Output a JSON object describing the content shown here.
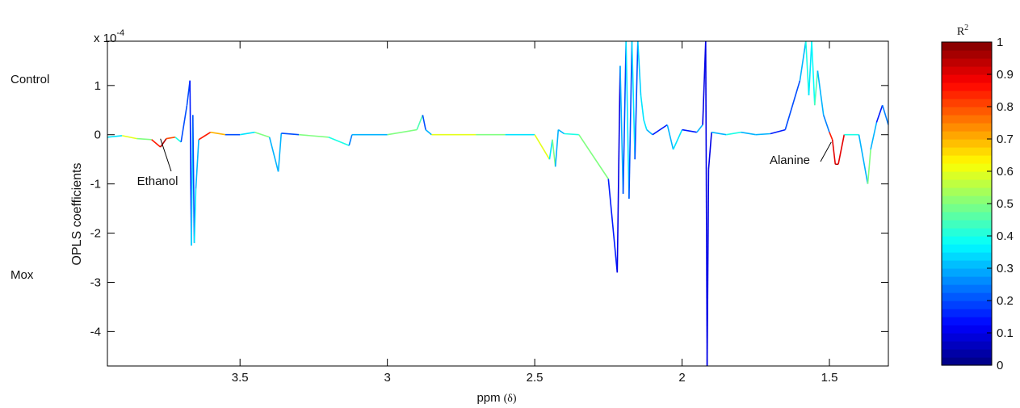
{
  "chart_data": {
    "type": "line",
    "xlabel": "ppm",
    "xlabel_symbol": "(δ)",
    "ylabel": "OPLS coefficients",
    "y_multiplier": "x 10",
    "y_multiplier_exp": "-4",
    "x_direction": "reversed",
    "xlim": [
      1.3,
      3.95
    ],
    "ylim": [
      -4.7,
      1.9
    ],
    "x_ticks": [
      "3.5",
      "3",
      "2.5",
      "2",
      "1.5"
    ],
    "x_tick_values": [
      3.5,
      3.0,
      2.5,
      2.0,
      1.5
    ],
    "y_ticks": [
      "1",
      "0",
      "-1",
      "-2",
      "-3",
      "-4"
    ],
    "y_tick_values": [
      1,
      0,
      -1,
      -2,
      -3,
      -4
    ],
    "grid": false,
    "group_labels": {
      "top": "Control",
      "bottom": "Mox"
    },
    "annotations": [
      {
        "text": "Ethanol",
        "x": 3.77,
        "y": -0.05
      },
      {
        "text": "Alanine",
        "x": 1.48,
        "y": -0.1
      }
    ],
    "colorbar": {
      "title": "R",
      "title_exp": "2",
      "range": [
        0,
        1
      ],
      "ticks": [
        "1",
        "0.9",
        "0.8",
        "0.7",
        "0.6",
        "0.5",
        "0.4",
        "0.3",
        "0.2",
        "0.1",
        "0"
      ],
      "tick_values": [
        1,
        0.9,
        0.8,
        0.7,
        0.6,
        0.5,
        0.4,
        0.3,
        0.2,
        0.1,
        0
      ],
      "colormap": "jet"
    },
    "series": [
      {
        "x": [
          3.95,
          3.9,
          3.85,
          3.8,
          3.77,
          3.75,
          3.72,
          3.7,
          3.68,
          3.67,
          3.665,
          3.66,
          3.655,
          3.65,
          3.64,
          3.6,
          3.55,
          3.5,
          3.45,
          3.4,
          3.37,
          3.36,
          3.3,
          3.2,
          3.13,
          3.12,
          3.0,
          2.9,
          2.88,
          2.87,
          2.85,
          2.7,
          2.6,
          2.5,
          2.45,
          2.44,
          2.43,
          2.42,
          2.4,
          2.35,
          2.25,
          2.22,
          2.21,
          2.2,
          2.19,
          2.18,
          2.17,
          2.16,
          2.15,
          2.14,
          2.13,
          2.12,
          2.1,
          2.05,
          2.03,
          2.0,
          1.95,
          1.93,
          1.92,
          1.915,
          1.91,
          1.9,
          1.85,
          1.8,
          1.75,
          1.7,
          1.65,
          1.6,
          1.58,
          1.57,
          1.56,
          1.55,
          1.54,
          1.52,
          1.5,
          1.49,
          1.48,
          1.47,
          1.45,
          1.4,
          1.37,
          1.36,
          1.34,
          1.32,
          1.3
        ],
        "y": [
          -0.05,
          -0.02,
          -0.08,
          -0.1,
          -0.25,
          -0.08,
          -0.05,
          -0.15,
          0.6,
          1.1,
          -2.25,
          0.4,
          -2.2,
          -1.1,
          -0.1,
          0.05,
          0.0,
          0.0,
          0.05,
          -0.05,
          -0.75,
          0.03,
          0.0,
          -0.05,
          -0.22,
          0.0,
          0.0,
          0.1,
          0.4,
          0.1,
          0.0,
          0.0,
          0.0,
          0.0,
          -0.5,
          -0.1,
          -0.65,
          0.1,
          0.02,
          0.0,
          -0.9,
          -2.8,
          1.4,
          -1.2,
          1.9,
          -1.3,
          1.9,
          -0.5,
          1.9,
          0.8,
          0.3,
          0.1,
          0.0,
          0.2,
          -0.3,
          0.1,
          0.05,
          0.2,
          1.9,
          -4.7,
          -0.7,
          0.05,
          0.0,
          0.05,
          0.0,
          0.02,
          0.1,
          1.1,
          1.9,
          0.8,
          1.9,
          0.6,
          1.3,
          0.4,
          0.05,
          -0.1,
          -0.6,
          -0.6,
          0.0,
          0.0,
          -1.0,
          -0.3,
          0.25,
          0.6,
          0.2
        ],
        "r2": [
          0.35,
          0.6,
          0.5,
          0.85,
          0.95,
          0.8,
          0.4,
          0.2,
          0.2,
          0.15,
          0.35,
          0.2,
          0.35,
          0.3,
          0.85,
          0.7,
          0.2,
          0.35,
          0.5,
          0.3,
          0.3,
          0.2,
          0.5,
          0.4,
          0.25,
          0.3,
          0.5,
          0.45,
          0.2,
          0.3,
          0.6,
          0.5,
          0.35,
          0.6,
          0.35,
          0.5,
          0.3,
          0.3,
          0.4,
          0.5,
          0.15,
          0.1,
          0.3,
          0.2,
          0.35,
          0.2,
          0.35,
          0.2,
          0.33,
          0.35,
          0.35,
          0.3,
          0.15,
          0.3,
          0.35,
          0.15,
          0.3,
          0.1,
          0.1,
          0.1,
          0.1,
          0.3,
          0.4,
          0.3,
          0.3,
          0.15,
          0.2,
          0.3,
          0.4,
          0.35,
          0.38,
          0.45,
          0.3,
          0.25,
          0.85,
          0.9,
          0.95,
          0.9,
          0.4,
          0.3,
          0.5,
          0.3,
          0.15,
          0.25,
          0.35
        ]
      }
    ]
  }
}
